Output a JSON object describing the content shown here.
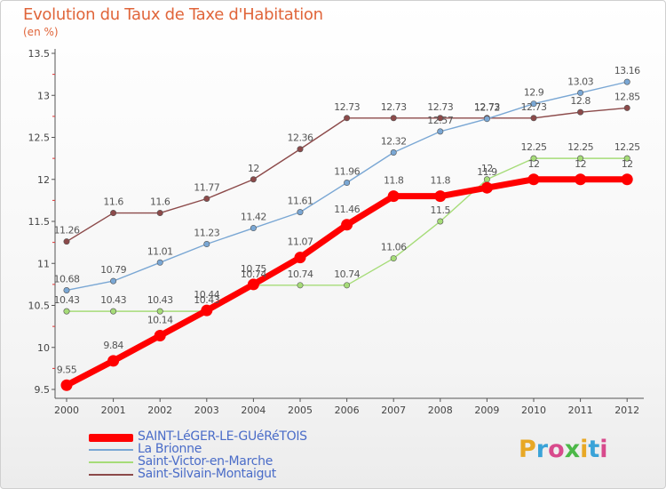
{
  "header": {
    "title": "Evolution du Taux de Taxe d'Habitation",
    "unit": "(en %)"
  },
  "brand": {
    "text": "Proxiti",
    "colors": [
      "#e8a825",
      "#3aa3d8",
      "#d84a8c",
      "#4cb848",
      "#e8a825",
      "#3aa3d8",
      "#d84a8c"
    ]
  },
  "chart_data": {
    "type": "line",
    "x": [
      "2000",
      "2001",
      "2002",
      "2003",
      "2004",
      "2005",
      "2006",
      "2007",
      "2008",
      "2009",
      "2010",
      "2011",
      "2012"
    ],
    "yticks": [
      "9.5",
      "10",
      "10.5",
      "11",
      "11.5",
      "12",
      "12.5",
      "13",
      "13.5"
    ],
    "ylim": [
      9.5,
      13.5
    ],
    "grid": false,
    "legend_position": "bottom-left",
    "series": [
      {
        "name": "SAINT-LéGER-LE-GUéRéTOIS",
        "color": "#ff0000",
        "values": [
          9.55,
          9.84,
          10.14,
          10.44,
          10.75,
          11.07,
          11.46,
          11.8,
          11.8,
          11.9,
          12,
          12,
          12
        ],
        "labels": [
          "9.55",
          "9.84",
          "10.14",
          "10.44",
          "10.75",
          "11.07",
          "11.46",
          "11.8",
          "11.8",
          "11.9",
          "12",
          "12",
          "12"
        ]
      },
      {
        "name": "La Brionne",
        "color": "#7aa7d4",
        "values": [
          10.68,
          10.79,
          11.01,
          11.23,
          11.42,
          11.61,
          11.96,
          12.32,
          12.57,
          12.72,
          12.9,
          13.03,
          13.16
        ],
        "labels": [
          "10.68",
          "10.79",
          "11.01",
          "11.23",
          "11.42",
          "11.61",
          "11.96",
          "12.32",
          "12.57",
          "12.72",
          "12.9",
          "13.03",
          "13.16"
        ]
      },
      {
        "name": "Saint-Victor-en-Marche",
        "color": "#a6dc78",
        "values": [
          10.43,
          10.43,
          10.43,
          10.43,
          10.74,
          10.74,
          10.74,
          11.06,
          11.5,
          12,
          12.25,
          12.25,
          12.25
        ],
        "labels": [
          "10.43",
          "10.43",
          "10.43",
          "10.43",
          "10.74",
          "10.74",
          "10.74",
          "11.06",
          "11.5",
          "12",
          "12.25",
          "12.25",
          "12.25"
        ]
      },
      {
        "name": "Saint-Silvain-Montaigut",
        "color": "#8c4a4a",
        "values": [
          11.26,
          11.6,
          11.6,
          11.77,
          12,
          12.36,
          12.73,
          12.73,
          12.73,
          12.73,
          12.73,
          12.8,
          12.85
        ],
        "labels": [
          "11.26",
          "11.6",
          "11.6",
          "11.77",
          "12",
          "12.36",
          "12.73",
          "12.73",
          "12.73",
          "12.73",
          "12.73",
          "12.8",
          "12.85"
        ]
      }
    ]
  }
}
